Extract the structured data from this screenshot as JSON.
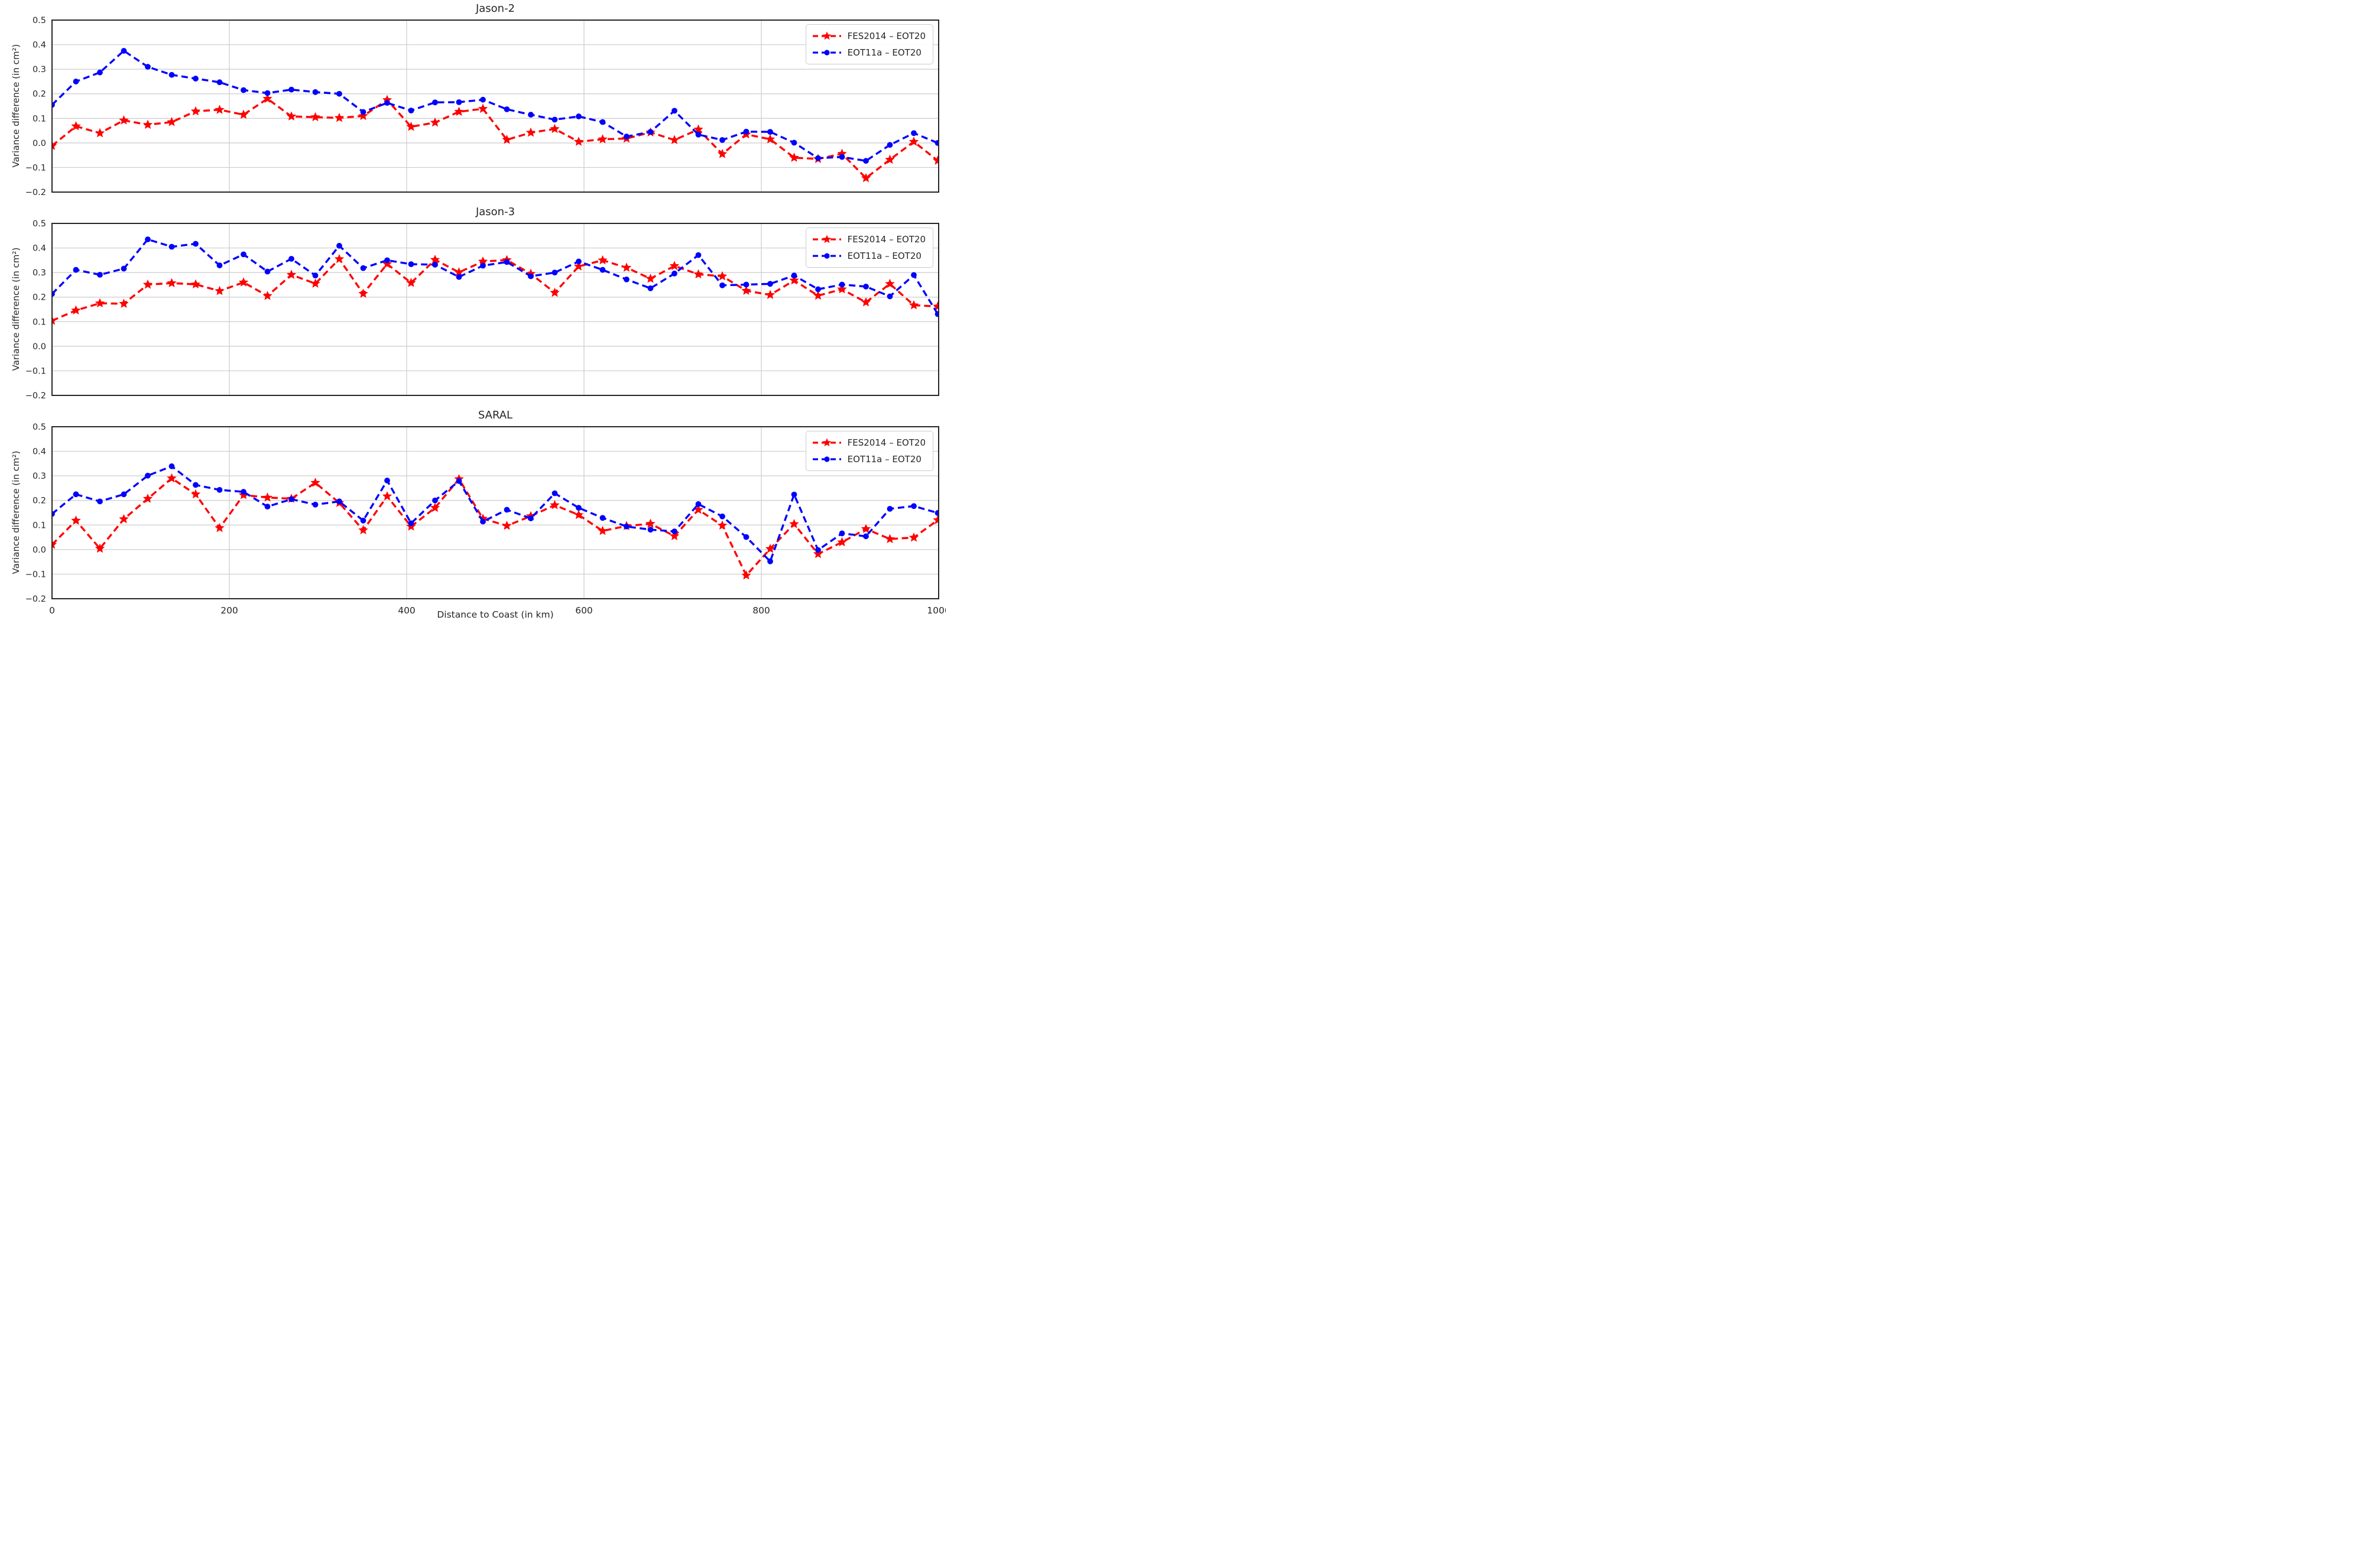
{
  "figure": {
    "xlabel": "Distance to Coast (in km)",
    "ylabel": "Variance difference (in cm²)",
    "background_color": "#ffffff",
    "grid_color": "#cccccc",
    "spine_color": "#262626",
    "text_color": "#262626"
  },
  "chart_data": [
    {
      "type": "line",
      "title": "Jason-2",
      "xlabel": "Distance to Coast (in km)",
      "ylabel": "Variance difference (in cm²)",
      "xlim": [
        0,
        1000
      ],
      "ylim": [
        -0.2,
        0.5
      ],
      "xticks": [
        0,
        200,
        400,
        600,
        800,
        1000
      ],
      "yticks": [
        0.5,
        0.4,
        0.3,
        0.2,
        0.1,
        0.0,
        -0.1,
        -0.2
      ],
      "grid": true,
      "legend_position": "upper right",
      "x": [
        0,
        27,
        54,
        81,
        108,
        135,
        162,
        189,
        216,
        243,
        270,
        297,
        324,
        351,
        378,
        405,
        432,
        459,
        486,
        513,
        540,
        567,
        594,
        621,
        648,
        675,
        702,
        729,
        756,
        783,
        810,
        837,
        864,
        891,
        918,
        945,
        972,
        999
      ],
      "series": [
        {
          "name": "FES2014 – EOT20",
          "color": "#ff0000",
          "marker": "star",
          "linestyle": "dashed",
          "values": [
            -0.012,
            0.068,
            0.04,
            0.092,
            0.074,
            0.085,
            0.129,
            0.135,
            0.115,
            0.18,
            0.108,
            0.105,
            0.102,
            0.11,
            0.175,
            0.066,
            0.083,
            0.127,
            0.139,
            0.013,
            0.042,
            0.057,
            0.005,
            0.015,
            0.018,
            0.043,
            0.012,
            0.055,
            -0.045,
            0.035,
            0.015,
            -0.06,
            -0.065,
            -0.044,
            -0.143,
            -0.068,
            0.005,
            -0.072
          ]
        },
        {
          "name": "EOT11a – EOT20",
          "color": "#0000ff",
          "marker": "circle",
          "linestyle": "dashed",
          "values": [
            0.155,
            0.25,
            0.287,
            0.375,
            0.31,
            0.277,
            0.262,
            0.247,
            0.215,
            0.203,
            0.217,
            0.207,
            0.2,
            0.126,
            0.163,
            0.132,
            0.165,
            0.166,
            0.176,
            0.137,
            0.115,
            0.095,
            0.108,
            0.085,
            0.026,
            0.045,
            0.131,
            0.034,
            0.012,
            0.046,
            0.045,
            0.001,
            -0.062,
            -0.057,
            -0.073,
            -0.008,
            0.04,
            0.0
          ]
        }
      ]
    },
    {
      "type": "line",
      "title": "Jason-3",
      "xlabel": "Distance to Coast (in km)",
      "ylabel": "Variance difference (in cm²)",
      "xlim": [
        0,
        1000
      ],
      "ylim": [
        -0.2,
        0.5
      ],
      "xticks": [
        0,
        200,
        400,
        600,
        800,
        1000
      ],
      "yticks": [
        0.5,
        0.4,
        0.3,
        0.2,
        0.1,
        0.0,
        -0.1,
        -0.2
      ],
      "grid": true,
      "legend_position": "upper right",
      "x": [
        0,
        27,
        54,
        81,
        108,
        135,
        162,
        189,
        216,
        243,
        270,
        297,
        324,
        351,
        378,
        405,
        432,
        459,
        486,
        513,
        540,
        567,
        594,
        621,
        648,
        675,
        702,
        729,
        756,
        783,
        810,
        837,
        864,
        891,
        918,
        945,
        972,
        999
      ],
      "series": [
        {
          "name": "FES2014 – EOT20",
          "color": "#ff0000",
          "marker": "star",
          "linestyle": "dashed",
          "values": [
            0.104,
            0.146,
            0.175,
            0.173,
            0.251,
            0.257,
            0.252,
            0.225,
            0.26,
            0.205,
            0.291,
            0.255,
            0.355,
            0.214,
            0.335,
            0.258,
            0.352,
            0.301,
            0.345,
            0.351,
            0.295,
            0.218,
            0.325,
            0.35,
            0.32,
            0.275,
            0.327,
            0.293,
            0.285,
            0.226,
            0.209,
            0.268,
            0.206,
            0.232,
            0.179,
            0.254,
            0.167,
            0.162
          ]
        },
        {
          "name": "EOT11a – EOT20",
          "color": "#0000ff",
          "marker": "circle",
          "linestyle": "dashed",
          "values": [
            0.213,
            0.311,
            0.291,
            0.316,
            0.435,
            0.405,
            0.417,
            0.329,
            0.374,
            0.304,
            0.356,
            0.288,
            0.409,
            0.318,
            0.35,
            0.334,
            0.332,
            0.282,
            0.328,
            0.343,
            0.285,
            0.3,
            0.345,
            0.311,
            0.272,
            0.236,
            0.296,
            0.371,
            0.248,
            0.251,
            0.254,
            0.288,
            0.232,
            0.251,
            0.243,
            0.203,
            0.29,
            0.131
          ]
        }
      ]
    },
    {
      "type": "line",
      "title": "SARAL",
      "xlabel": "Distance to Coast (in km)",
      "ylabel": "Variance difference (in cm²)",
      "xlim": [
        0,
        1000
      ],
      "ylim": [
        -0.2,
        0.5
      ],
      "xticks": [
        0,
        200,
        400,
        600,
        800,
        1000
      ],
      "yticks": [
        0.5,
        0.4,
        0.3,
        0.2,
        0.1,
        0.0,
        -0.1,
        -0.2
      ],
      "grid": true,
      "legend_position": "upper right",
      "x": [
        0,
        27,
        54,
        81,
        108,
        135,
        162,
        189,
        216,
        243,
        270,
        297,
        324,
        351,
        378,
        405,
        432,
        459,
        486,
        513,
        540,
        567,
        594,
        621,
        648,
        675,
        702,
        729,
        756,
        783,
        810,
        837,
        864,
        891,
        918,
        945,
        972,
        999
      ],
      "series": [
        {
          "name": "FES2014 – EOT20",
          "color": "#ff0000",
          "marker": "star",
          "linestyle": "dashed",
          "values": [
            0.02,
            0.118,
            0.004,
            0.124,
            0.207,
            0.29,
            0.225,
            0.088,
            0.222,
            0.212,
            0.207,
            0.272,
            0.19,
            0.079,
            0.217,
            0.094,
            0.17,
            0.287,
            0.126,
            0.097,
            0.136,
            0.181,
            0.141,
            0.076,
            0.096,
            0.105,
            0.055,
            0.162,
            0.098,
            -0.105,
            0.003,
            0.104,
            -0.018,
            0.03,
            0.084,
            0.043,
            0.049,
            0.12
          ]
        },
        {
          "name": "EOT11a – EOT20",
          "color": "#0000ff",
          "marker": "circle",
          "linestyle": "dashed",
          "values": [
            0.145,
            0.225,
            0.196,
            0.225,
            0.301,
            0.339,
            0.263,
            0.243,
            0.235,
            0.175,
            0.205,
            0.183,
            0.196,
            0.118,
            0.281,
            0.107,
            0.2,
            0.279,
            0.114,
            0.162,
            0.127,
            0.229,
            0.17,
            0.129,
            0.094,
            0.081,
            0.074,
            0.185,
            0.135,
            0.051,
            -0.048,
            0.224,
            -0.002,
            0.066,
            0.054,
            0.166,
            0.177,
            0.149
          ]
        }
      ]
    }
  ]
}
